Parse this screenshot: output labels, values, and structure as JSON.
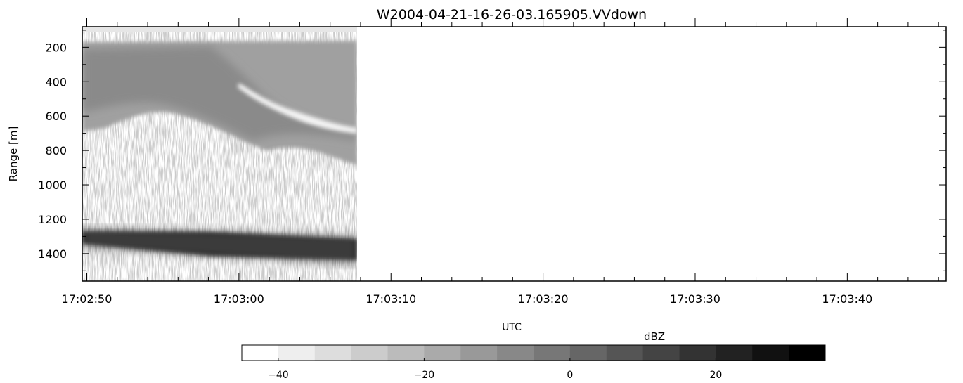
{
  "chart_data": {
    "type": "heatmap",
    "title": "W2004-04-21-16-26-03.165905.VVdown",
    "xlabel": "UTC",
    "ylabel": "Range [m]",
    "x_range": [
      "17:02:49.7",
      "17:03:46.5"
    ],
    "x_tick_labels": [
      "17:02:50",
      "17:03:00",
      "17:03:10",
      "17:03:20",
      "17:03:30",
      "17:03:40"
    ],
    "x_tick_seconds": [
      0,
      10,
      20,
      30,
      40,
      50
    ],
    "data_end": "17:03:07.5",
    "y_range": [
      80,
      1560
    ],
    "y_reversed": true,
    "y_tick_values": [
      200,
      400,
      600,
      800,
      1000,
      1200,
      1400
    ],
    "colorbar": {
      "label": "dBZ",
      "range": [
        -45,
        35
      ],
      "tick_values": [
        -40,
        -20,
        0,
        20
      ],
      "tick_labels": [
        "−40",
        "−20",
        "0",
        "20"
      ],
      "colormap": "grayscale, white (low) to black (high)"
    },
    "features": [
      {
        "name": "upper reflectivity layer",
        "range_m": [
          120,
          850
        ],
        "dbz": [
          -20,
          -10
        ]
      },
      {
        "name": "strong dark band",
        "range_m": [
          1270,
          1410
        ],
        "dbz": [
          20,
          35
        ]
      },
      {
        "name": "near-range white strip",
        "range_m": [
          80,
          110
        ],
        "dbz": [
          -45,
          -40
        ]
      }
    ]
  }
}
